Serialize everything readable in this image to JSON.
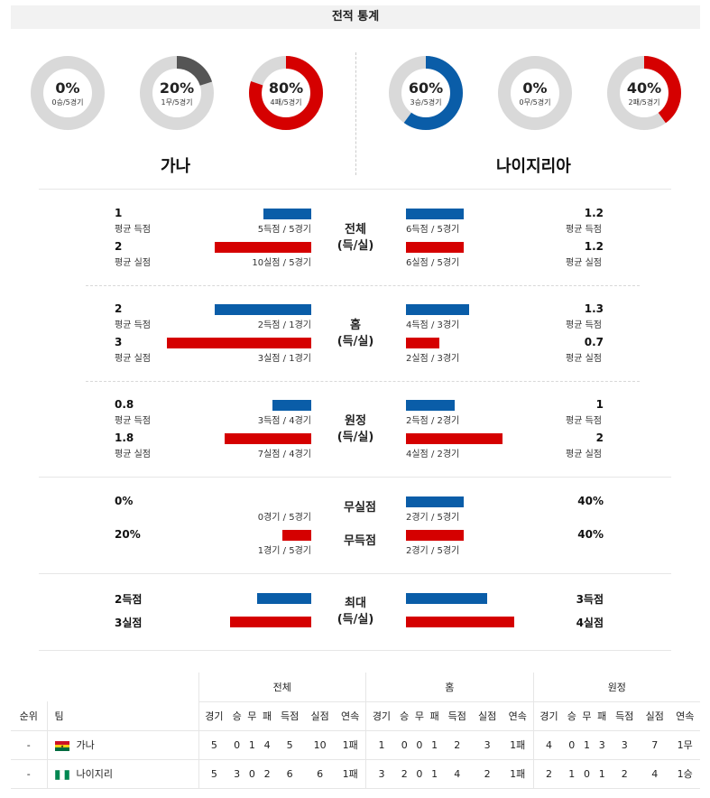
{
  "title": "전적 통계",
  "team_a": {
    "name": "가나",
    "donuts": [
      {
        "pct": "0%",
        "sub": "0승/5경기",
        "value": 0,
        "color": "#d50000"
      },
      {
        "pct": "20%",
        "sub": "1무/5경기",
        "value": 0.2,
        "color": "#555555"
      },
      {
        "pct": "80%",
        "sub": "4패/5경기",
        "value": 0.8,
        "color": "#d50000"
      }
    ]
  },
  "team_b": {
    "name": "나이지리아",
    "donuts": [
      {
        "pct": "60%",
        "sub": "3승/5경기",
        "value": 0.6,
        "color": "#0a5da8"
      },
      {
        "pct": "0%",
        "sub": "0무/5경기",
        "value": 0,
        "color": "#555555"
      },
      {
        "pct": "40%",
        "sub": "2패/5경기",
        "value": 0.4,
        "color": "#d50000"
      }
    ]
  },
  "sections": [
    {
      "cat": [
        "전체",
        "(득/실)"
      ],
      "a": [
        {
          "val": "1",
          "lbl": "평균 득점",
          "bar": "5득점 / 5경기",
          "level": 1
        },
        {
          "val": "2",
          "lbl": "평균 실점",
          "bar": "10실점 / 5경기",
          "level": 2
        }
      ],
      "b": [
        {
          "val": "1.2",
          "lbl": "평균 득점",
          "bar": "6득점 / 5경기",
          "level": 1.2
        },
        {
          "val": "1.2",
          "lbl": "평균 실점",
          "bar": "6실점 / 5경기",
          "level": 1.2
        }
      ]
    },
    {
      "cat": [
        "홈",
        "(득/실)"
      ],
      "a": [
        {
          "val": "2",
          "lbl": "평균 득점",
          "bar": "2득점 / 1경기",
          "level": 2
        },
        {
          "val": "3",
          "lbl": "평균 실점",
          "bar": "3실점 / 1경기",
          "level": 3
        }
      ],
      "b": [
        {
          "val": "1.3",
          "lbl": "평균 득점",
          "bar": "4득점 / 3경기",
          "level": 1.3
        },
        {
          "val": "0.7",
          "lbl": "평균 실점",
          "bar": "2실점 / 3경기",
          "level": 0.7
        }
      ]
    },
    {
      "cat": [
        "원정",
        "(득/실)"
      ],
      "a": [
        {
          "val": "0.8",
          "lbl": "평균 득점",
          "bar": "3득점 / 4경기",
          "level": 0.8
        },
        {
          "val": "1.8",
          "lbl": "평균 실점",
          "bar": "7실점 / 4경기",
          "level": 1.8
        }
      ],
      "b": [
        {
          "val": "1",
          "lbl": "평균 득점",
          "bar": "2득점 / 2경기",
          "level": 1
        },
        {
          "val": "2",
          "lbl": "평균 실점",
          "bar": "4실점 / 2경기",
          "level": 2
        }
      ]
    }
  ],
  "clean": {
    "cat1": "무실점",
    "cat2": "무득점",
    "a1": {
      "val": "0%",
      "bar": "0경기 / 5경기",
      "level": 0
    },
    "a2": {
      "val": "20%",
      "bar": "1경기 / 5경기",
      "level": 0.2
    },
    "b1": {
      "val": "40%",
      "bar": "2경기 / 5경기",
      "level": 0.4
    },
    "b2": {
      "val": "40%",
      "bar": "2경기 / 5경기",
      "level": 0.4
    }
  },
  "max": {
    "cat": [
      "최대",
      "(득/실)"
    ],
    "a_goals": "2득점",
    "a_conceded": "3실점",
    "b_goals": "3득점",
    "b_conceded": "4실점",
    "a_goals_level": 2,
    "a_conceded_level": 3,
    "b_goals_level": 3,
    "b_conceded_level": 4
  },
  "table": {
    "groups": [
      "전체",
      "홈",
      "원정"
    ],
    "rank_header": "순위",
    "team_header": "팀",
    "cols": [
      "경기",
      "승",
      "무",
      "패",
      "득점",
      "실점",
      "연속"
    ],
    "rows": [
      {
        "rank": "-",
        "team": "가나",
        "flag": "ghana",
        "all": [
          "5",
          "0",
          "1",
          "4",
          "5",
          "10",
          "1패"
        ],
        "home": [
          "1",
          "0",
          "0",
          "1",
          "2",
          "3",
          "1패"
        ],
        "away": [
          "4",
          "0",
          "1",
          "3",
          "3",
          "7",
          "1무"
        ]
      },
      {
        "rank": "-",
        "team": "나이지리",
        "flag": "nigeria",
        "all": [
          "5",
          "3",
          "0",
          "2",
          "6",
          "6",
          "1패"
        ],
        "home": [
          "3",
          "2",
          "0",
          "1",
          "4",
          "2",
          "1패"
        ],
        "away": [
          "2",
          "1",
          "0",
          "1",
          "2",
          "4",
          "1승"
        ]
      }
    ]
  }
}
